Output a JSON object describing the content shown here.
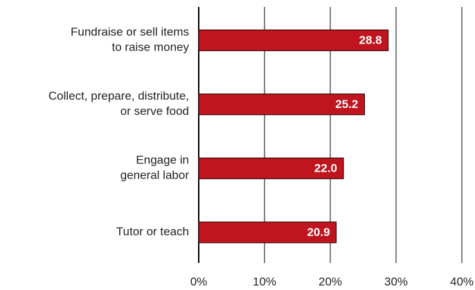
{
  "chart_data": {
    "type": "bar",
    "orientation": "horizontal",
    "categories": [
      [
        "Fundraise or sell items",
        "to raise money"
      ],
      [
        "Collect, prepare, distribute,",
        "or serve food"
      ],
      [
        "Engage in",
        "general labor"
      ],
      [
        "Tutor or teach"
      ]
    ],
    "values": [
      28.8,
      25.2,
      22.0,
      20.9
    ],
    "value_labels": [
      "28.8",
      "25.2",
      "22.0",
      "20.9"
    ],
    "color": "#c0141e",
    "xlim": [
      0,
      40
    ],
    "xticks": [
      {
        "value": 0,
        "label": "0%"
      },
      {
        "value": 10,
        "label": "10%"
      },
      {
        "value": 20,
        "label": "20%"
      },
      {
        "value": 30,
        "label": "30%"
      },
      {
        "value": 40,
        "label": "40%"
      }
    ],
    "grid": true
  }
}
